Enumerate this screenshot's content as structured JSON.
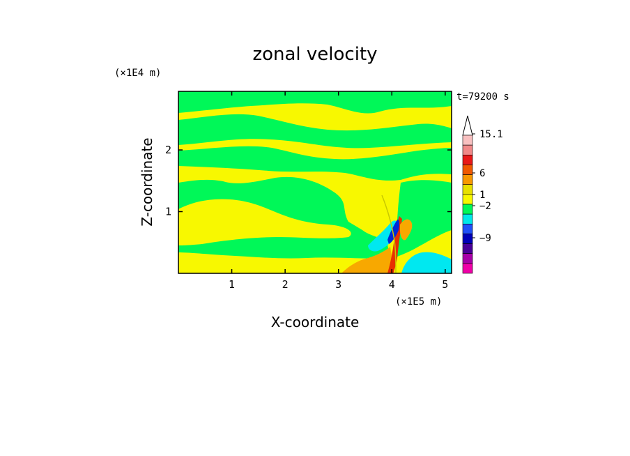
{
  "chart_data": {
    "type": "heatmap",
    "title": "zonal velocity",
    "xlabel": "X-coordinate",
    "ylabel": "Z-coordinate",
    "x_multiplier": "(×1E5 m)",
    "y_multiplier": "(×1E4 m)",
    "time_label": "t=79200 s",
    "xlim": [
      0,
      5.12
    ],
    "ylim": [
      0,
      2.95
    ],
    "x_ticks": [
      "1",
      "2",
      "3",
      "4",
      "5"
    ],
    "y_ticks": [
      "1",
      "2"
    ],
    "colorbar": {
      "labels": [
        "15.1",
        "6",
        "1",
        "−2",
        "−9"
      ],
      "colors_top_to_bottom": [
        "#f8c0c0",
        "#f08888",
        "#e81818",
        "#f05800",
        "#f89800",
        "#e8e000",
        "#f8f800",
        "#00f858",
        "#00e8e8",
        "#2050f8",
        "#0000b8",
        "#480098",
        "#a800a8",
        "#f000a8"
      ],
      "extend_top": true
    },
    "palette": {
      "green": "#00f858",
      "yellow": "#f8f800",
      "orange": "#f8a800",
      "red": "#e83000",
      "cyan": "#00e8f0",
      "blue": "#0028d8"
    }
  }
}
